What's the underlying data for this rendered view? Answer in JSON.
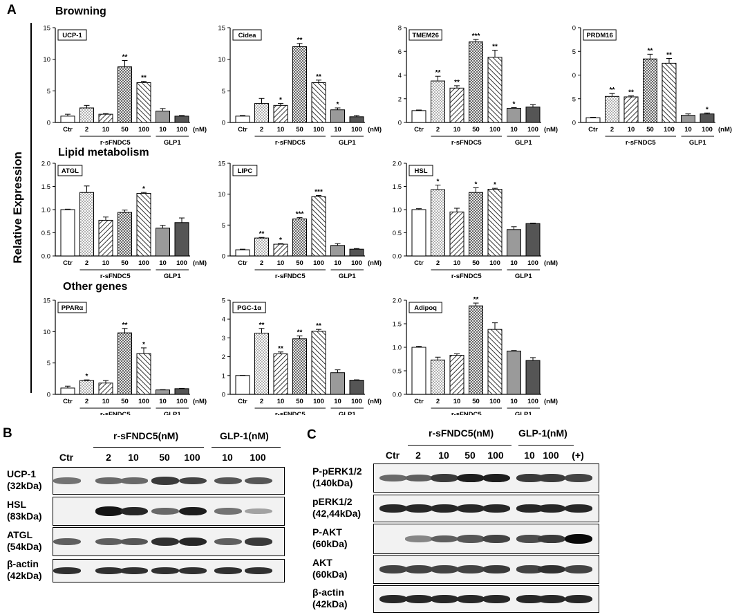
{
  "panel_letters": {
    "a": "A",
    "b": "B",
    "c": "C"
  },
  "y_axis_title": "Relative Expression",
  "sections": {
    "browning": "Browning",
    "lipid": "Lipid metabolism",
    "other": "Other genes"
  },
  "x_common": {
    "categories": [
      "Ctr",
      "2",
      "10",
      "50",
      "100",
      "10",
      "100"
    ],
    "unit": "(nM)",
    "group1": "r-sFNDC5",
    "group2": "GLP1"
  },
  "colors": {
    "ctr": "#ffffff",
    "glp_light": "#9a9a9a",
    "glp_dark": "#555555",
    "ink": "#000000"
  },
  "chart_data": [
    {
      "type": "bar",
      "gene": "UCP-1",
      "categories": [
        "Ctr",
        "2",
        "10",
        "50",
        "100",
        "10",
        "100"
      ],
      "values": [
        1.0,
        2.3,
        1.3,
        8.8,
        6.3,
        1.8,
        1.0
      ],
      "errors": [
        0.3,
        0.4,
        0.1,
        1.0,
        0.2,
        0.4,
        0.1
      ],
      "stars": [
        "",
        "",
        "",
        "**",
        "**",
        "",
        ""
      ],
      "ylim": [
        0,
        15
      ],
      "yticks": [
        "0",
        "5",
        "10",
        "15"
      ]
    },
    {
      "type": "bar",
      "gene": "Cidea",
      "categories": [
        "Ctr",
        "2",
        "10",
        "50",
        "100",
        "10",
        "100"
      ],
      "values": [
        1.0,
        3.0,
        2.7,
        12.0,
        6.3,
        2.0,
        0.9
      ],
      "errors": [
        0.1,
        0.8,
        0.3,
        0.5,
        0.4,
        0.3,
        0.2
      ],
      "stars": [
        "",
        "",
        "*",
        "**",
        "**",
        "*",
        ""
      ],
      "ylim": [
        0,
        15
      ],
      "yticks": [
        "0",
        "5",
        "10",
        "15"
      ]
    },
    {
      "type": "bar",
      "gene": "TMEM26",
      "categories": [
        "Ctr",
        "2",
        "10",
        "50",
        "100",
        "10",
        "100"
      ],
      "values": [
        1.0,
        3.5,
        2.9,
        6.8,
        5.5,
        1.2,
        1.3
      ],
      "errors": [
        0.05,
        0.4,
        0.2,
        0.2,
        0.6,
        0.05,
        0.2
      ],
      "stars": [
        "",
        "**",
        "**",
        "***",
        "**",
        "*",
        ""
      ],
      "ylim": [
        0,
        8
      ],
      "yticks": [
        "0",
        "2",
        "4",
        "6",
        "8"
      ]
    },
    {
      "type": "bar",
      "gene": "PRDM16",
      "categories": [
        "Ctr",
        "2",
        "10",
        "50",
        "100",
        "10",
        "100"
      ],
      "values": [
        1.0,
        5.5,
        5.4,
        13.4,
        12.5,
        1.5,
        1.8
      ],
      "errors": [
        0.1,
        0.6,
        0.2,
        1.0,
        1.0,
        0.3,
        0.2
      ],
      "stars": [
        "",
        "**",
        "**",
        "**",
        "**",
        "",
        "*"
      ],
      "ylim": [
        0,
        20
      ],
      "yticks": [
        "0",
        "5",
        "0",
        "5",
        "0"
      ]
    },
    {
      "type": "bar",
      "gene": "ATGL",
      "categories": [
        "Ctr",
        "2",
        "10",
        "50",
        "100",
        "10",
        "100"
      ],
      "values": [
        1.0,
        1.37,
        0.77,
        0.94,
        1.35,
        0.6,
        0.72
      ],
      "errors": [
        0.01,
        0.14,
        0.07,
        0.05,
        0.02,
        0.06,
        0.1
      ],
      "stars": [
        "",
        "",
        "",
        "",
        "*",
        "",
        ""
      ],
      "ylim": [
        0,
        2.0
      ],
      "yticks": [
        "0.0",
        "0.5",
        "1.0",
        "1.5",
        "2.0"
      ]
    },
    {
      "type": "bar",
      "gene": "LIPC",
      "categories": [
        "Ctr",
        "2",
        "10",
        "50",
        "100",
        "10",
        "100"
      ],
      "values": [
        1.0,
        2.9,
        1.9,
        6.0,
        9.6,
        1.7,
        1.1
      ],
      "errors": [
        0.1,
        0.1,
        0.1,
        0.2,
        0.2,
        0.3,
        0.1
      ],
      "stars": [
        "",
        "**",
        "*",
        "***",
        "***",
        "",
        ""
      ],
      "ylim": [
        0,
        15
      ],
      "yticks": [
        "0",
        "5",
        "10",
        "15"
      ]
    },
    {
      "type": "bar",
      "gene": "HSL",
      "categories": [
        "Ctr",
        "2",
        "10",
        "50",
        "100",
        "10",
        "100"
      ],
      "values": [
        1.0,
        1.43,
        0.95,
        1.37,
        1.44,
        0.57,
        0.7
      ],
      "errors": [
        0.02,
        0.1,
        0.08,
        0.1,
        0.02,
        0.06,
        0.01
      ],
      "stars": [
        "",
        "*",
        "",
        "*",
        "*",
        "",
        ""
      ],
      "ylim": [
        0,
        2.0
      ],
      "yticks": [
        "0.0",
        "0.5",
        "1.0",
        "1.5",
        "2.0"
      ]
    },
    {
      "type": "bar",
      "gene": "PPARα",
      "categories": [
        "Ctr",
        "2",
        "10",
        "50",
        "100",
        "10",
        "100"
      ],
      "values": [
        1.0,
        2.2,
        1.8,
        9.8,
        6.5,
        0.7,
        0.9
      ],
      "errors": [
        0.3,
        0.1,
        0.4,
        0.7,
        0.9,
        0.05,
        0.05
      ],
      "stars": [
        "",
        "*",
        "",
        "**",
        "*",
        "",
        ""
      ],
      "ylim": [
        0,
        15
      ],
      "yticks": [
        "0",
        "5",
        "10",
        "15"
      ]
    },
    {
      "type": "bar",
      "gene": "PGC-1α",
      "categories": [
        "Ctr",
        "2",
        "10",
        "50",
        "100",
        "10",
        "100"
      ],
      "values": [
        1.0,
        3.25,
        2.15,
        2.95,
        3.35,
        1.15,
        0.75
      ],
      "errors": [
        0.01,
        0.25,
        0.1,
        0.15,
        0.1,
        0.15,
        0.02
      ],
      "stars": [
        "",
        "**",
        "**",
        "**",
        "**",
        "",
        ""
      ],
      "ylim": [
        0,
        5
      ],
      "yticks": [
        "0",
        "1",
        "2",
        "3",
        "4",
        "5"
      ]
    },
    {
      "type": "bar",
      "gene": "Adipoq",
      "categories": [
        "Ctr",
        "2",
        "10",
        "50",
        "100",
        "10",
        "100"
      ],
      "values": [
        1.0,
        0.73,
        0.83,
        1.88,
        1.38,
        0.92,
        0.72
      ],
      "errors": [
        0.02,
        0.06,
        0.03,
        0.06,
        0.14,
        0.01,
        0.06
      ],
      "stars": [
        "",
        "",
        "",
        "**",
        "",
        "",
        ""
      ],
      "ylim": [
        0,
        2.0
      ],
      "yticks": [
        "0.0",
        "0.5",
        "1.0",
        "1.5",
        "2.0"
      ]
    }
  ],
  "blot_b": {
    "lanes": [
      "Ctr",
      "2",
      "10",
      "50",
      "100",
      "10",
      "100"
    ],
    "group1": "r-sFNDC5(nM)",
    "group2": "GLP-1(nM)",
    "rows": [
      {
        "name": "UCP-1",
        "size": "(32kDa)"
      },
      {
        "name": "HSL",
        "size": "(83kDa)"
      },
      {
        "name": "ATGL",
        "size": "(54kDa)"
      },
      {
        "name": "β-actin",
        "size": "(42kDa)"
      }
    ]
  },
  "blot_c": {
    "lanes": [
      "Ctr",
      "2",
      "10",
      "50",
      "100",
      "10",
      "100",
      "(+)"
    ],
    "group1": "r-sFNDC5(nM)",
    "group2": "GLP-1(nM)",
    "rows": [
      {
        "name": "P-pERK1/2",
        "size": "(140kDa)"
      },
      {
        "name": "pERK1/2",
        "size": "(42,44kDa)"
      },
      {
        "name": "P-AKT",
        "size": "(60kDa)"
      },
      {
        "name": "AKT",
        "size": "(60kDa)"
      },
      {
        "name": "β-actin",
        "size": "(42kDa)"
      }
    ]
  }
}
